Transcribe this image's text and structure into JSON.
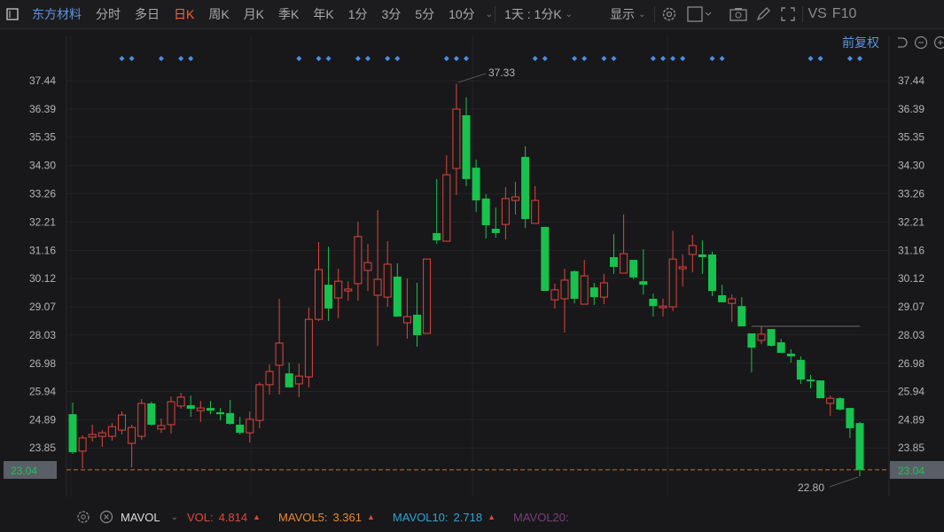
{
  "toolbar": {
    "stock_name": "东方材料",
    "periods": [
      "分时",
      "多日",
      "日K",
      "周K",
      "月K",
      "季K",
      "年K",
      "1分",
      "3分",
      "5分",
      "10分"
    ],
    "selected_period": "日K",
    "interval_select": "1天 : 1分K",
    "display_label": "显示",
    "vs_label": "VS",
    "f10_label": "F10"
  },
  "subbar": {
    "adjust_label": "前复权"
  },
  "colors": {
    "up": "#e0453d",
    "down": "#17c24e",
    "selected": "#f26a2c",
    "accent": "#5f92dc",
    "marker": "#4a8ee8"
  },
  "chart_data": {
    "type": "candlestick",
    "y_ticks": [
      "37.44",
      "36.39",
      "35.35",
      "34.30",
      "33.26",
      "32.21",
      "31.16",
      "30.12",
      "29.07",
      "28.03",
      "26.98",
      "25.94",
      "24.89",
      "23.85"
    ],
    "ylim": [
      22.6,
      37.8
    ],
    "current_price": "23.04",
    "high_label": "37.33",
    "low_label": "22.80",
    "reference_line": 28.35,
    "ohlc": [
      [
        25.1,
        25.53,
        23.63,
        23.69
      ],
      [
        23.73,
        24.32,
        23.1,
        24.22
      ],
      [
        24.25,
        24.71,
        24.09,
        24.35
      ],
      [
        24.28,
        24.51,
        23.89,
        24.41
      ],
      [
        24.28,
        24.77,
        24.12,
        24.64
      ],
      [
        24.51,
        25.2,
        24.35,
        25.07
      ],
      [
        24.02,
        24.71,
        23.13,
        24.61
      ],
      [
        24.28,
        25.66,
        24.15,
        25.5
      ],
      [
        25.5,
        25.56,
        24.68,
        24.71
      ],
      [
        24.55,
        24.94,
        24.41,
        24.68
      ],
      [
        24.71,
        25.76,
        24.38,
        25.56
      ],
      [
        25.4,
        25.89,
        25.3,
        25.73
      ],
      [
        25.43,
        25.79,
        25.0,
        25.3
      ],
      [
        25.23,
        25.59,
        24.81,
        25.33
      ],
      [
        25.33,
        25.59,
        25.1,
        25.23
      ],
      [
        25.17,
        25.33,
        24.87,
        25.1
      ],
      [
        25.14,
        25.63,
        24.71,
        24.74
      ],
      [
        24.71,
        25.0,
        24.35,
        24.41
      ],
      [
        24.41,
        25.2,
        24.05,
        24.91
      ],
      [
        24.87,
        26.28,
        24.58,
        26.19
      ],
      [
        26.19,
        26.94,
        25.83,
        26.68
      ],
      [
        26.91,
        29.37,
        25.83,
        27.73
      ],
      [
        26.61,
        27.01,
        26.09,
        26.09
      ],
      [
        26.22,
        26.97,
        25.73,
        26.51
      ],
      [
        26.48,
        29.04,
        26.09,
        28.61
      ],
      [
        28.61,
        31.47,
        28.55,
        30.45
      ],
      [
        29.89,
        31.3,
        28.55,
        29.01
      ],
      [
        29.4,
        30.48,
        28.65,
        30.02
      ],
      [
        29.66,
        30.02,
        29.3,
        29.73
      ],
      [
        29.93,
        32.22,
        29.3,
        31.67
      ],
      [
        30.42,
        31.4,
        29.66,
        30.71
      ],
      [
        29.5,
        32.65,
        27.63,
        30.09
      ],
      [
        29.43,
        31.5,
        29.07,
        30.65
      ],
      [
        30.19,
        30.68,
        28.71,
        28.71
      ],
      [
        28.48,
        30.12,
        27.89,
        28.71
      ],
      [
        28.78,
        29.96,
        27.6,
        28.02
      ],
      [
        28.09,
        30.84,
        28.09,
        30.84
      ],
      [
        31.8,
        33.8,
        31.4,
        31.53
      ],
      [
        31.5,
        34.68,
        31.5,
        33.96
      ],
      [
        34.19,
        37.33,
        33.21,
        36.39
      ],
      [
        36.16,
        36.82,
        33.54,
        33.8
      ],
      [
        34.22,
        34.52,
        32.58,
        33.01
      ],
      [
        33.08,
        33.24,
        31.6,
        32.09
      ],
      [
        31.96,
        32.75,
        31.63,
        31.8
      ],
      [
        32.12,
        33.5,
        31.57,
        33.08
      ],
      [
        33.01,
        33.7,
        32.49,
        33.14
      ],
      [
        34.62,
        35.01,
        31.99,
        32.32
      ],
      [
        32.16,
        33.54,
        32.16,
        33.01
      ],
      [
        32.03,
        32.03,
        29.66,
        29.66
      ],
      [
        29.33,
        29.93,
        29.01,
        29.7
      ],
      [
        29.37,
        30.48,
        28.12,
        30.06
      ],
      [
        30.39,
        30.42,
        29.2,
        29.37
      ],
      [
        29.17,
        30.81,
        29.17,
        30.22
      ],
      [
        29.79,
        29.96,
        29.14,
        29.43
      ],
      [
        29.43,
        30.29,
        29.17,
        29.96
      ],
      [
        30.91,
        31.76,
        30.29,
        30.55
      ],
      [
        30.32,
        32.49,
        30.32,
        31.04
      ],
      [
        30.81,
        30.81,
        30.09,
        30.16
      ],
      [
        30.02,
        31.2,
        29.53,
        29.89
      ],
      [
        29.37,
        29.56,
        28.71,
        29.1
      ],
      [
        29.04,
        29.37,
        28.71,
        29.1
      ],
      [
        29.07,
        31.89,
        28.91,
        30.84
      ],
      [
        30.48,
        31.01,
        29.83,
        30.55
      ],
      [
        31.01,
        31.73,
        30.35,
        31.34
      ],
      [
        31.01,
        31.53,
        30.29,
        30.91
      ],
      [
        31.01,
        31.11,
        29.47,
        29.66
      ],
      [
        29.5,
        29.89,
        29.24,
        29.24
      ],
      [
        29.2,
        29.53,
        28.52,
        29.37
      ],
      [
        29.1,
        29.43,
        28.35,
        28.35
      ],
      [
        28.09,
        28.09,
        26.65,
        27.56
      ],
      [
        27.83,
        28.35,
        27.7,
        28.06
      ],
      [
        28.25,
        28.25,
        27.6,
        27.63
      ],
      [
        27.76,
        27.89,
        27.37,
        27.37
      ],
      [
        27.34,
        27.5,
        27.01,
        27.24
      ],
      [
        27.11,
        27.24,
        26.22,
        26.38
      ],
      [
        26.38,
        26.55,
        26.05,
        26.32
      ],
      [
        26.35,
        26.35,
        25.69,
        25.69
      ],
      [
        25.5,
        25.79,
        25.04,
        25.69
      ],
      [
        25.69,
        25.73,
        25.23,
        25.27
      ],
      [
        25.33,
        25.33,
        24.22,
        24.58
      ],
      [
        24.77,
        24.81,
        22.8,
        23.04
      ]
    ],
    "marker_indices": [
      5,
      6,
      9,
      11,
      12,
      23,
      25,
      26,
      29,
      30,
      32,
      33,
      38,
      39,
      40,
      47,
      48,
      51,
      52,
      54,
      55,
      59,
      60,
      61,
      62,
      65,
      66,
      75,
      76,
      79,
      80
    ]
  },
  "volume": {
    "indicator": "MAVOL",
    "vol_label": "VOL:",
    "vol_value": "4.814",
    "mavol5_label": "MAVOL5:",
    "mavol5_value": "3.361",
    "mavol10_label": "MAVOL10:",
    "mavol10_value": "2.718",
    "mavol20_label": "MAVOL20:",
    "colors": {
      "vol": "#e0453d",
      "mavol5": "#e8892c",
      "mavol10": "#2ea3d8",
      "mavol20": "#7a3f7a"
    }
  }
}
